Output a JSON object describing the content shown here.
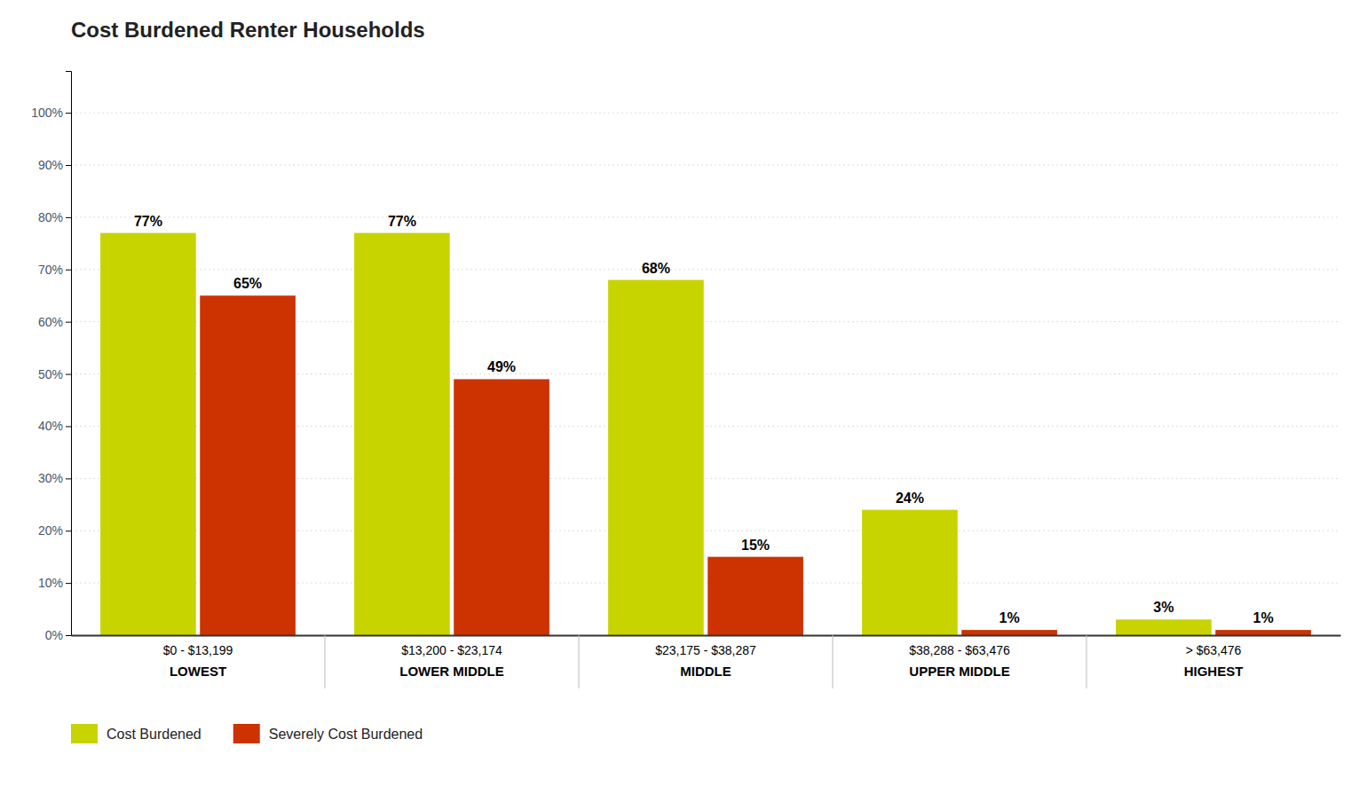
{
  "chart_data": {
    "type": "bar",
    "title": "Cost Burdened Renter Households",
    "categories": [
      [
        "$0 - $13,199",
        "LOWEST"
      ],
      [
        "$13,200 - $23,174",
        "LOWER MIDDLE"
      ],
      [
        "$23,175 - $38,287",
        "MIDDLE"
      ],
      [
        "$38,288 - $63,476",
        "UPPER MIDDLE"
      ],
      [
        "> $63,476",
        "HIGHEST"
      ]
    ],
    "series": [
      {
        "name": "Cost Burdened",
        "color": "#c8d400",
        "values": [
          77,
          77,
          68,
          24,
          3
        ],
        "value_labels": [
          "77%",
          "77%",
          "68%",
          "24%",
          "3%"
        ]
      },
      {
        "name": "Severely Cost Burdened",
        "color": "#cc3300",
        "values": [
          65,
          49,
          15,
          1,
          1
        ],
        "value_labels": [
          "65%",
          "49%",
          "15%",
          "1%",
          "1%"
        ]
      }
    ],
    "ylim": [
      0,
      108
    ],
    "yticks": [
      {
        "value": 0,
        "label": "0%"
      },
      {
        "value": 10,
        "label": "10%"
      },
      {
        "value": 20,
        "label": "20%"
      },
      {
        "value": 30,
        "label": "30%"
      },
      {
        "value": 40,
        "label": "40%"
      },
      {
        "value": 50,
        "label": "50%"
      },
      {
        "value": 60,
        "label": "60%"
      },
      {
        "value": 70,
        "label": "70%"
      },
      {
        "value": 80,
        "label": "80%"
      },
      {
        "value": 90,
        "label": "90%"
      },
      {
        "value": 100,
        "label": "100%"
      }
    ],
    "grid": true,
    "data_labels": true,
    "legend": "bottom"
  }
}
